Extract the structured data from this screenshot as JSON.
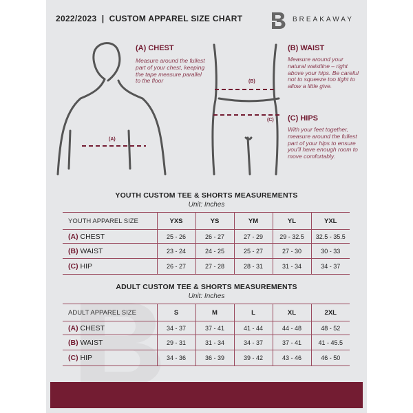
{
  "header": {
    "title": "2022/2023  |  CUSTOM APPAREL SIZE CHART",
    "brand": "BREAKAWAY",
    "logo_letter": "B"
  },
  "colors": {
    "accent": "#731c32",
    "background": "#e6e7e9"
  },
  "guide": {
    "chest": {
      "heading": "(A) CHEST",
      "text": "Measure around the fullest part of your chest, keeping the tape measure parallel to the floor",
      "marker": "(A)"
    },
    "waist": {
      "heading": "(B) WAIST",
      "text": "Measure around your natural waistline – right above your hips. Be careful not to squeeze too tight to allow a little give.",
      "marker": "(B)"
    },
    "hips": {
      "heading": "(C) HIPS",
      "text": "With your feet together, measure around the fullest part of your hips to ensure you'll have enough room to move comfortably.",
      "marker": "(C)"
    }
  },
  "youth": {
    "title": "YOUTH CUSTOM TEE & SHORTS MEASUREMENTS",
    "unit": "Unit: Inches",
    "header": [
      "YOUTH APPAREL SIZE",
      "YXS",
      "YS",
      "YM",
      "YL",
      "YXL"
    ],
    "rows": [
      {
        "code": "(A)",
        "label": "CHEST",
        "values": [
          "25 - 26",
          "26 - 27",
          "27 - 29",
          "29 - 32.5",
          "32.5 - 35.5"
        ]
      },
      {
        "code": "(B)",
        "label": "WAIST",
        "values": [
          "23 - 24",
          "24 - 25",
          "25 - 27",
          "27 - 30",
          "30 - 33"
        ]
      },
      {
        "code": "(C)",
        "label": "HIP",
        "values": [
          "26 - 27",
          "27 - 28",
          "28 - 31",
          "31 - 34",
          "34 - 37"
        ]
      }
    ]
  },
  "adult": {
    "title": "ADULT CUSTOM TEE & SHORTS MEASUREMENTS",
    "unit": "Unit: Inches",
    "header": [
      "ADULT APPAREL SIZE",
      "S",
      "M",
      "L",
      "XL",
      "2XL"
    ],
    "rows": [
      {
        "code": "(A)",
        "label": "CHEST",
        "values": [
          "34 - 37",
          "37 - 41",
          "41 - 44",
          "44 - 48",
          "48 - 52"
        ]
      },
      {
        "code": "(B)",
        "label": "WAIST",
        "values": [
          "29 - 31",
          "31 - 34",
          "34 - 37",
          "37 - 41",
          "41 - 45.5"
        ]
      },
      {
        "code": "(C)",
        "label": "HIP",
        "values": [
          "34 - 36",
          "36 - 39",
          "39 - 42",
          "43 - 46",
          "46 - 50"
        ]
      }
    ]
  }
}
